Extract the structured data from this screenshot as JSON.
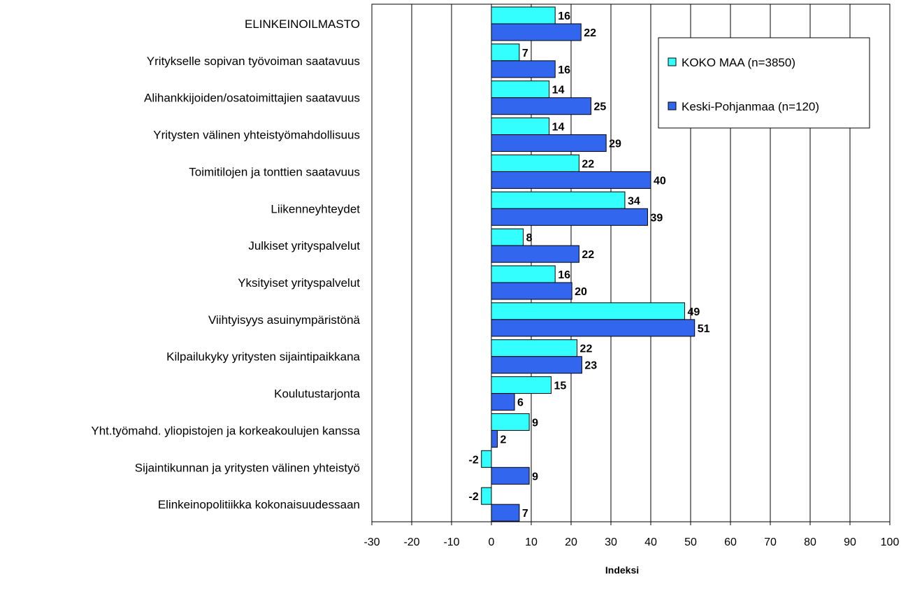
{
  "chart_data": {
    "type": "bar",
    "orientation": "horizontal",
    "categories": [
      "ELINKEINOILMASTO",
      "Yritykselle sopivan työvoiman saatavuus",
      "Alihankkijoiden/osatoimittajien saatavuus",
      "Yritysten välinen yhteistyömahdollisuus",
      "Toimitilojen ja tonttien saatavuus",
      "Liikenneyhteydet",
      "Julkiset yrityspalvelut",
      "Yksityiset yrityspalvelut",
      "Viihtyisyys asuinympäristönä",
      "Kilpailukyky yritysten sijaintipaikkana",
      "Koulutustarjonta",
      "Yht.työmahd. yliopistojen ja korkeakoulujen kanssa",
      "Sijaintikunnan ja yritysten välinen yhteistyö",
      "Elinkeinopolitiikka kokonaisuudessaan"
    ],
    "series": [
      {
        "name": "KOKO MAA (n=3850)",
        "color": "#33ffff",
        "values": [
          16,
          7,
          14,
          14,
          22,
          34,
          8,
          16,
          49,
          22,
          15,
          9,
          -2,
          -2
        ],
        "bar_values": [
          16,
          7,
          14.5,
          14.5,
          22,
          33.5,
          8,
          16,
          48.5,
          21.5,
          15,
          9.5,
          -2.5,
          -2.5
        ],
        "labels": [
          "16",
          "7",
          "14",
          "14",
          "22",
          "34",
          "8",
          "16",
          "49",
          "22",
          "15",
          "9",
          "-2",
          "-2"
        ]
      },
      {
        "name": "Keski-Pohjanmaa (n=120)",
        "color": "#3366ee",
        "values": [
          22,
          16,
          25,
          29,
          40,
          39,
          22,
          20,
          51,
          23,
          6,
          2,
          9,
          7
        ],
        "bar_values": [
          22.5,
          16,
          25,
          28.8,
          40,
          39.2,
          22,
          20.2,
          51,
          22.7,
          5.8,
          1.5,
          9.5,
          7
        ],
        "labels": [
          "22",
          "16",
          "25",
          "29",
          "40",
          "39",
          "22",
          "20",
          "51",
          "23",
          "6",
          "2",
          "9",
          "7"
        ]
      }
    ],
    "xlabel": "Indeksi",
    "ylabel": "",
    "xlim": [
      -30,
      100
    ],
    "xticks": [
      -30,
      -20,
      -10,
      0,
      10,
      20,
      30,
      40,
      50,
      60,
      70,
      80,
      90,
      100
    ],
    "xtick_labels": [
      "-30",
      "-20",
      "-10",
      "0",
      "10",
      "20",
      "30",
      "40",
      "50",
      "60",
      "70",
      "80",
      "90",
      "100"
    ],
    "grid": true,
    "legend_position": "top-right"
  }
}
